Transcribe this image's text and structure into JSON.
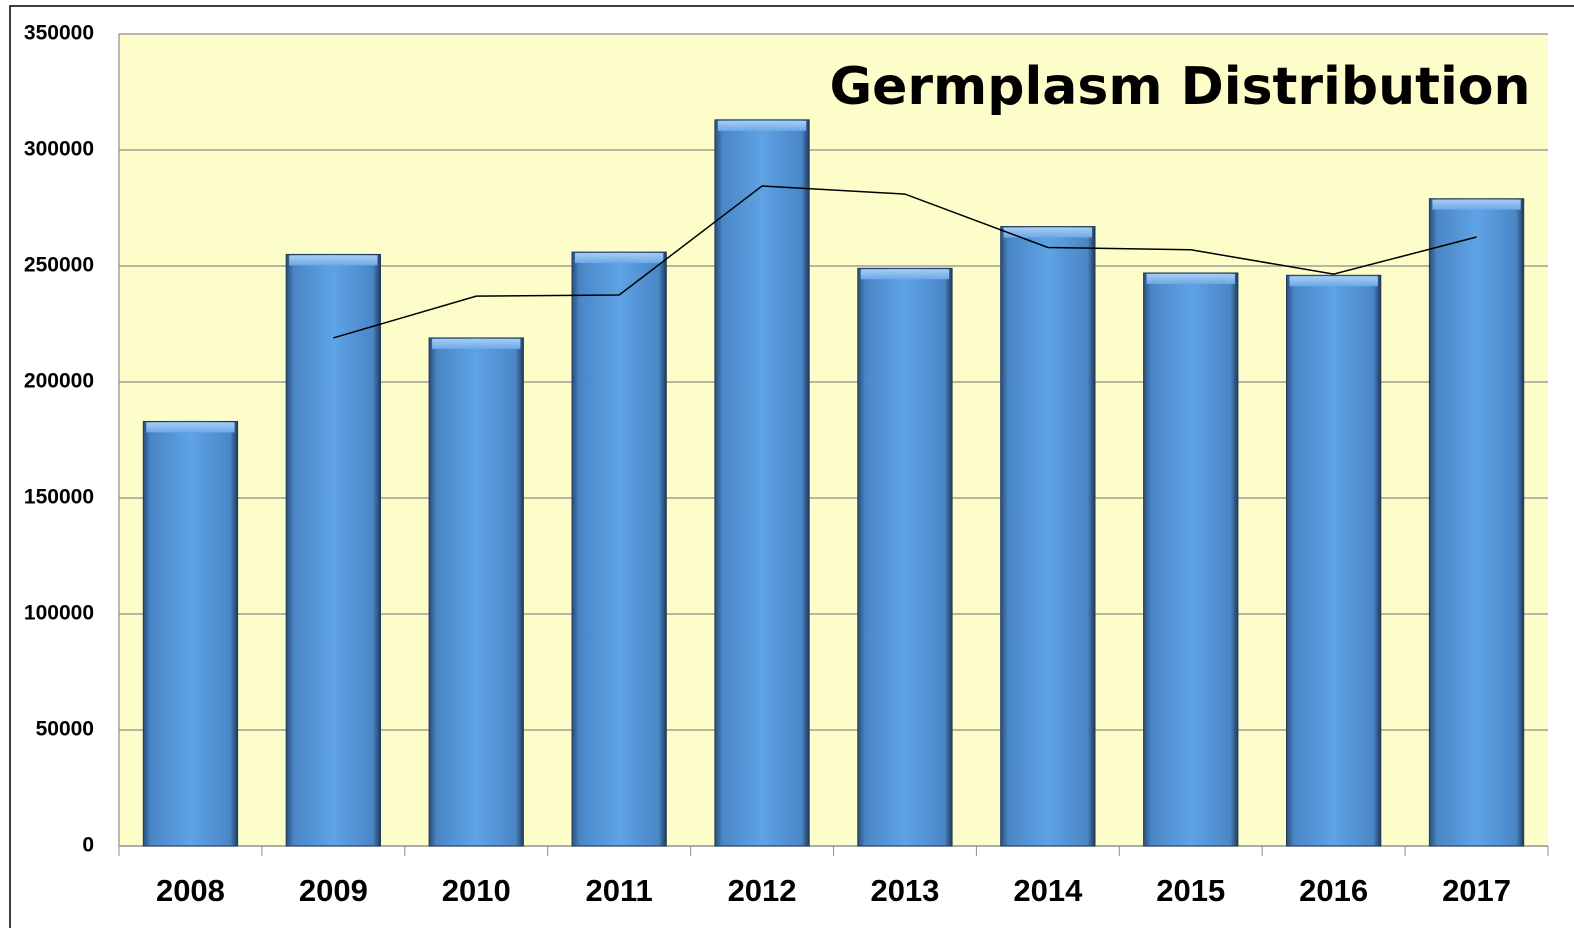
{
  "chart_data": {
    "type": "bar",
    "title": "Germplasm Distribution",
    "categories": [
      "2008",
      "2009",
      "2010",
      "2011",
      "2012",
      "2013",
      "2014",
      "2015",
      "2016",
      "2017"
    ],
    "series": [
      {
        "type": "bar",
        "color": "#5b9bd5",
        "values": [
          183000,
          255000,
          219000,
          256000,
          313000,
          249000,
          267000,
          247000,
          246000,
          279000
        ]
      },
      {
        "type": "line",
        "color": "#000000",
        "values": [
          null,
          219000,
          237000,
          237500,
          284500,
          281000,
          258000,
          257000,
          246500,
          262500
        ]
      }
    ],
    "ylim": [
      0,
      350000
    ],
    "yticks": [
      0,
      50000,
      100000,
      150000,
      200000,
      250000,
      300000,
      350000
    ],
    "grid": true,
    "background": "#fdfdc9"
  }
}
